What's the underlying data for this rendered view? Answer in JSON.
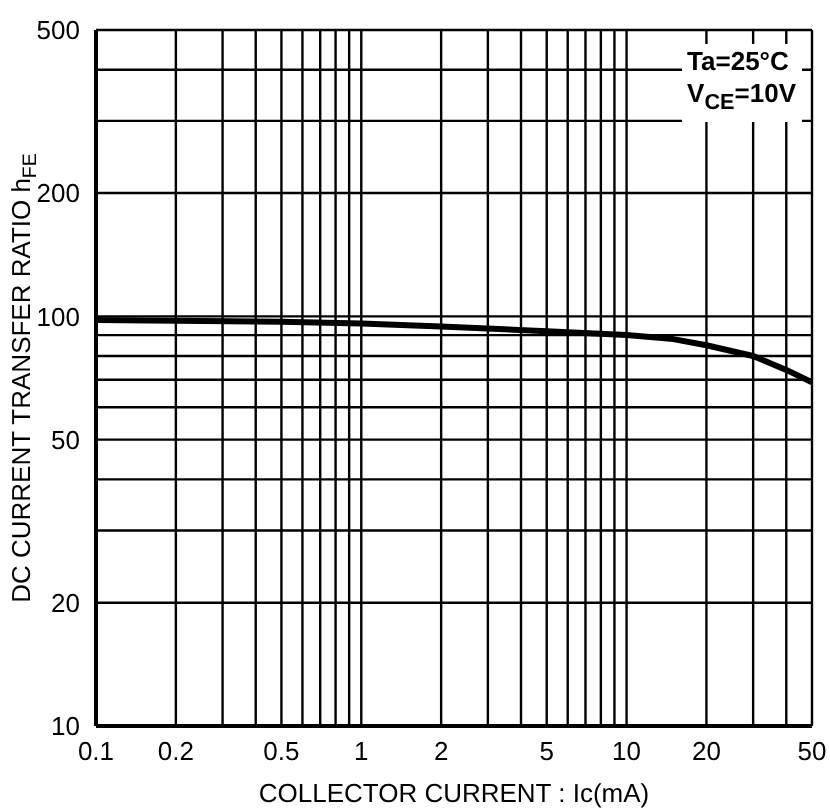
{
  "chart_data": {
    "type": "line",
    "xlabel": "COLLECTOR CURRENT : Ic(mA)",
    "ylabel": "DC CURRENT TRANSFER RATIO  h$_{FE}$",
    "annotations": [
      "Ta=25°C",
      "V$_{CE}$=10V"
    ],
    "log": "xy",
    "grid": true,
    "marker": "none",
    "line_style": "solid",
    "xlim": [
      0.1,
      50
    ],
    "ylim": [
      10,
      500
    ],
    "xticks": [
      0.1,
      0.2,
      {
        "value": 0.3,
        "label": null
      },
      {
        "value": 0.4,
        "label": null
      },
      0.5,
      {
        "value": 0.6,
        "label": null
      },
      {
        "value": 0.7,
        "label": null
      },
      {
        "value": 0.8,
        "label": null
      },
      {
        "value": 0.9,
        "label": null
      },
      1,
      2,
      {
        "value": 3,
        "label": null
      },
      {
        "value": 4,
        "label": null
      },
      5,
      {
        "value": 6,
        "label": null
      },
      {
        "value": 7,
        "label": null
      },
      {
        "value": 8,
        "label": null
      },
      {
        "value": 9,
        "label": null
      },
      10,
      20,
      {
        "value": 30,
        "label": null
      },
      {
        "value": 40,
        "label": null
      },
      50
    ],
    "yticks": [
      10,
      20,
      {
        "value": 30,
        "label": null
      },
      {
        "value": 40,
        "label": null
      },
      50,
      {
        "value": 60,
        "label": null
      },
      {
        "value": 70,
        "label": null
      },
      {
        "value": 80,
        "label": null
      },
      {
        "value": 90,
        "label": null
      },
      100,
      200,
      {
        "value": 300,
        "label": null
      },
      {
        "value": 400,
        "label": null
      },
      500
    ],
    "series": [
      {
        "color": "#000000",
        "x": [
          0.1,
          0.2,
          0.5,
          1,
          2,
          5,
          10,
          15,
          20,
          30,
          40,
          50
        ],
        "values": [
          98,
          97.5,
          97,
          96,
          94.5,
          92,
          90,
          88,
          85,
          80,
          74,
          69
        ]
      }
    ]
  }
}
